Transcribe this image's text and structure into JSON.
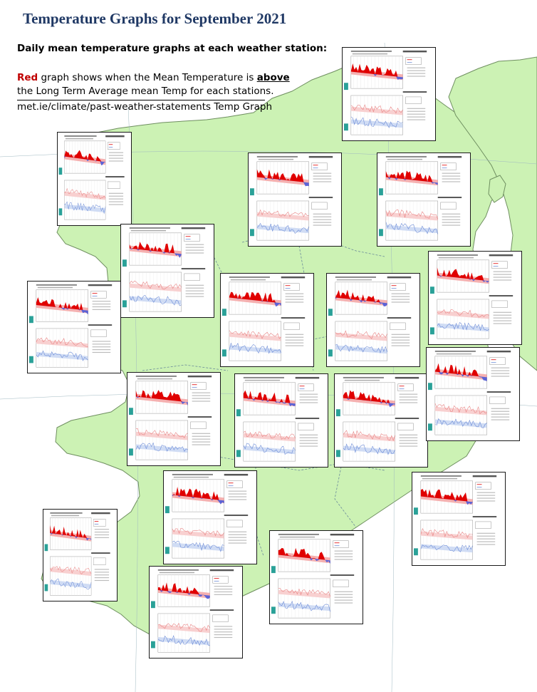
{
  "title": "Temperature Graphs for September 2021",
  "subtitle": "Daily mean temperature graphs at each weather station:",
  "explanation": {
    "red_word": "Red",
    "line1_middle": " graph shows when the Mean Temperature is ",
    "above_word": "above",
    "line2": "the Long Term Average mean Temp for each stations.",
    "line3": "met.ie/climate/past-weather-statements Temp Graph"
  },
  "colors": {
    "land": "#ccf2b4",
    "land_border": "#6f8f60",
    "county_border": "#6a8a9a",
    "title": "#1f3864",
    "above_fill": "#e00000",
    "below_fill": "#5b63d6",
    "ltm_band": "#f5b0b0",
    "max_line": "#e88080",
    "min_line": "#6a8ad6"
  },
  "panels": [
    {
      "station": "Malin Head"
    },
    {
      "station": "Belmullet"
    },
    {
      "station": "Finner"
    },
    {
      "station": "Ballyshannon"
    },
    {
      "station": "Knock Airport"
    },
    {
      "station": "Mullingar"
    },
    {
      "station": "Dublin Airport"
    },
    {
      "station": "Athenry"
    },
    {
      "station": "Gurteen"
    },
    {
      "station": "Casement"
    },
    {
      "station": "Shannon Airport"
    },
    {
      "station": "Mount Dillon"
    },
    {
      "station": "Oak Park"
    },
    {
      "station": "Newport"
    },
    {
      "station": "Cork Airport"
    },
    {
      "station": "Johnstown Castle"
    },
    {
      "station": "Valentia"
    },
    {
      "station": "Moore Park"
    },
    {
      "station": "Roches Point"
    },
    {
      "station": "Dunsany"
    },
    {
      "station": "Claremorris"
    }
  ]
}
